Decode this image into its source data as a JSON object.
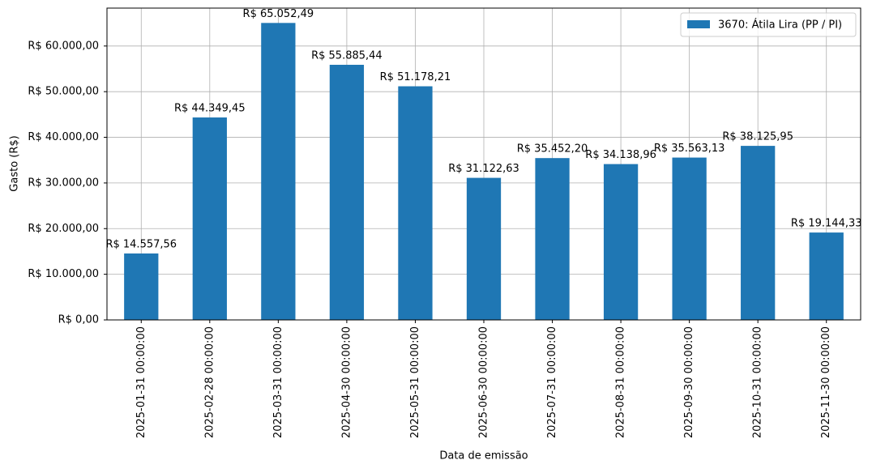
{
  "chart_data": {
    "type": "bar",
    "x_label": "Data de emissão",
    "y_label": "Gasto (R$)",
    "categories": [
      "2025-01-31 00:00:00",
      "2025-02-28 00:00:00",
      "2025-03-31 00:00:00",
      "2025-04-30 00:00:00",
      "2025-05-31 00:00:00",
      "2025-06-30 00:00:00",
      "2025-07-31 00:00:00",
      "2025-08-31 00:00:00",
      "2025-09-30 00:00:00",
      "2025-10-31 00:00:00",
      "2025-11-30 00:00:00"
    ],
    "series": [
      {
        "name": "3670: Átila Lira (PP / PI)",
        "color": "#1f77b4",
        "values": [
          14557.56,
          44349.45,
          65052.49,
          55885.44,
          51178.21,
          31122.63,
          35452.2,
          34138.96,
          35563.13,
          38125.95,
          19144.33
        ],
        "value_labels": [
          "R$ 14.557,56",
          "R$ 44.349,45",
          "R$ 65.052,49",
          "R$ 55.885,44",
          "R$ 51.178,21",
          "R$ 31.122,63",
          "R$ 35.452,20",
          "R$ 34.138,96",
          "R$ 35.563,13",
          "R$ 38.125,95",
          "R$ 19.144,33"
        ]
      }
    ],
    "ylim": [
      0,
      68305
    ],
    "yticks": [
      {
        "value": 0,
        "label": "R$ 0,00"
      },
      {
        "value": 10000,
        "label": "R$ 10.000,00"
      },
      {
        "value": 20000,
        "label": "R$ 20.000,00"
      },
      {
        "value": 30000,
        "label": "R$ 30.000,00"
      },
      {
        "value": 40000,
        "label": "R$ 40.000,00"
      },
      {
        "value": 50000,
        "label": "R$ 50.000,00"
      },
      {
        "value": 60000,
        "label": "R$ 60.000,00"
      }
    ],
    "grid": true,
    "legend": "upper right"
  }
}
